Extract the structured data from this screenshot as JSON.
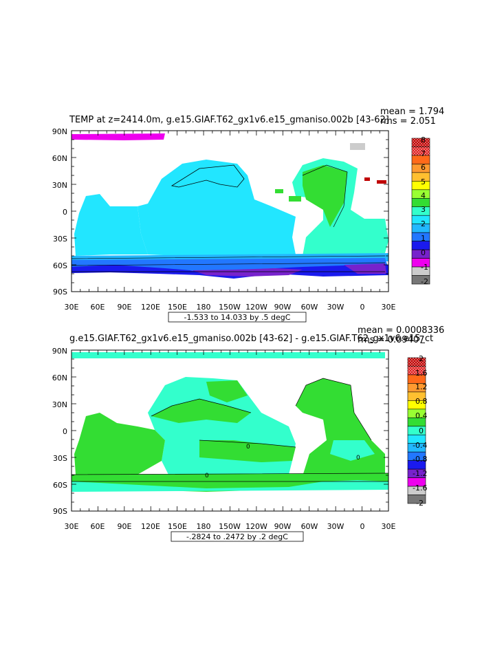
{
  "panels": [
    {
      "title": "TEMP at z=2414.0m, g.e15.GIAF.T62_gx1v6.e15_gmaniso.002b [43-62]",
      "mean": "mean = 1.794",
      "rms": "rms = 2.051",
      "range_label": "-1.533 to 14.033 by .5 degC",
      "lat_labels": [
        "90N",
        "60N",
        "30N",
        "0",
        "30S",
        "60S",
        "90S"
      ],
      "lon_labels": [
        "30E",
        "60E",
        "90E",
        "120E",
        "150E",
        "180",
        "150W",
        "120W",
        "90W",
        "60W",
        "30W",
        "0",
        "30E"
      ],
      "colorbar": {
        "labels": [
          "8",
          "7",
          "6",
          "5",
          "4",
          "3",
          "2",
          "1",
          "0",
          "-1",
          "-2"
        ],
        "colors": [
          "#c00000",
          "#e02020",
          "#ff6a1a",
          "#ff9a30",
          "#ffc030",
          "#ffff00",
          "#99ff33",
          "#33dd33",
          "#33ffcc",
          "#22e6ff",
          "#22b8ff",
          "#2277ff",
          "#1a1aee",
          "#7722cc",
          "#ee00ee",
          "#cccccc",
          "#777777"
        ],
        "dotted": [
          true,
          true,
          false,
          false,
          false,
          false,
          false,
          false,
          false,
          false,
          false,
          false,
          false,
          false,
          false,
          false,
          false
        ]
      }
    },
    {
      "title": "g.e15.GIAF.T62_gx1v6.e15_gmaniso.002b [43-62] - g.e15.GIAF.T62_gx1v6.e15_ct",
      "mean": "mean = 0.0008336",
      "rms": "rms = 0.09407",
      "range_label": "-.2824 to .2472 by .2 degC",
      "lat_labels": [
        "90N",
        "60N",
        "30N",
        "0",
        "30S",
        "60S",
        "90S"
      ],
      "lon_labels": [
        "30E",
        "60E",
        "90E",
        "120E",
        "150E",
        "180",
        "150W",
        "120W",
        "90W",
        "60W",
        "30W",
        "0",
        "30E"
      ],
      "colorbar": {
        "labels": [
          "2",
          "1.6",
          "1.2",
          "0.8",
          "0.4",
          "0",
          "-0.4",
          "-0.8",
          "-1.2",
          "-1.6",
          "-2"
        ],
        "colors": [
          "#c00000",
          "#e02020",
          "#ff6a1a",
          "#ff9a30",
          "#ffc030",
          "#ffff00",
          "#99ff33",
          "#33dd33",
          "#33ffcc",
          "#22e6ff",
          "#22b8ff",
          "#2277ff",
          "#1a1aee",
          "#7722cc",
          "#ee00ee",
          "#cccccc",
          "#777777"
        ],
        "dotted": [
          true,
          true,
          false,
          false,
          false,
          false,
          false,
          false,
          false,
          false,
          false,
          false,
          false,
          false,
          false,
          false,
          false
        ]
      }
    }
  ],
  "contour_labels": [
    "0",
    "0",
    "0"
  ]
}
